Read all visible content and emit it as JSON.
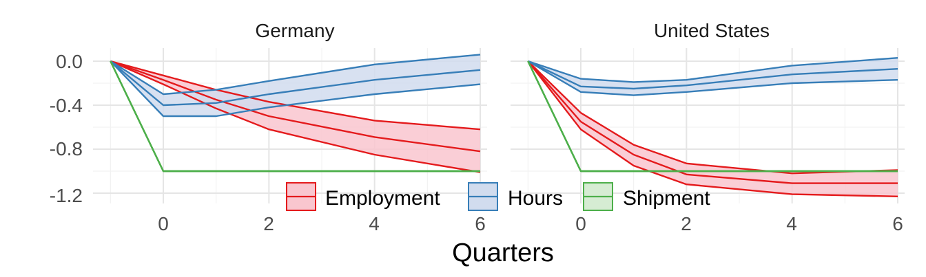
{
  "chart_data": {
    "type": "line",
    "facets": [
      {
        "title": "Germany",
        "series": [
          {
            "name": "Employment",
            "x": [
              -1,
              0,
              1,
              2,
              4,
              6
            ],
            "mean": [
              0,
              -0.17,
              -0.35,
              -0.5,
              -0.69,
              -0.82
            ],
            "lower": [
              0,
              -0.21,
              -0.43,
              -0.62,
              -0.85,
              -1.01
            ],
            "upper": [
              0,
              -0.13,
              -0.26,
              -0.37,
              -0.54,
              -0.62
            ]
          },
          {
            "name": "Hours",
            "x": [
              -1,
              0,
              1,
              2,
              4,
              6
            ],
            "mean": [
              0,
              -0.4,
              -0.38,
              -0.3,
              -0.17,
              -0.08
            ],
            "lower": [
              0,
              -0.5,
              -0.5,
              -0.42,
              -0.3,
              -0.21
            ],
            "upper": [
              0,
              -0.3,
              -0.26,
              -0.18,
              -0.03,
              0.06
            ]
          },
          {
            "name": "Shipment",
            "x": [
              -1,
              0,
              1,
              2,
              4,
              6
            ],
            "mean": [
              0,
              -1.0,
              -1.0,
              -1.0,
              -1.0,
              -1.0
            ],
            "lower": [
              0,
              -1.0,
              -1.0,
              -1.0,
              -1.0,
              -1.0
            ],
            "upper": [
              0,
              -1.0,
              -1.0,
              -1.0,
              -1.0,
              -1.0
            ]
          }
        ]
      },
      {
        "title": "United States",
        "series": [
          {
            "name": "Employment",
            "x": [
              -1,
              0,
              1,
              2,
              4,
              6
            ],
            "mean": [
              0,
              -0.55,
              -0.85,
              -1.03,
              -1.11,
              -1.11
            ],
            "lower": [
              0,
              -0.62,
              -0.95,
              -1.12,
              -1.21,
              -1.23
            ],
            "upper": [
              0,
              -0.47,
              -0.76,
              -0.93,
              -1.02,
              -0.99
            ]
          },
          {
            "name": "Hours",
            "x": [
              -1,
              0,
              1,
              2,
              4,
              6
            ],
            "mean": [
              0,
              -0.23,
              -0.25,
              -0.22,
              -0.12,
              -0.07
            ],
            "lower": [
              0,
              -0.28,
              -0.31,
              -0.28,
              -0.2,
              -0.17
            ],
            "upper": [
              0,
              -0.16,
              -0.19,
              -0.17,
              -0.04,
              0.03
            ]
          },
          {
            "name": "Shipment",
            "x": [
              -1,
              0,
              1,
              2,
              4,
              6
            ],
            "mean": [
              0,
              -1.0,
              -1.0,
              -1.0,
              -1.0,
              -1.0
            ],
            "lower": [
              0,
              -1.0,
              -1.0,
              -1.0,
              -1.0,
              -1.0
            ],
            "upper": [
              0,
              -1.0,
              -1.0,
              -1.0,
              -1.0,
              -1.0
            ]
          }
        ]
      }
    ],
    "xlabel": "Quarters",
    "ylabel": "",
    "xlim": [
      -1.3,
      6
    ],
    "ylim": [
      -1.25,
      0.07
    ],
    "x_ticks": [
      0,
      2,
      4,
      6
    ],
    "y_ticks": [
      0.0,
      -0.4,
      -0.8,
      -1.2
    ],
    "y_tick_labels": [
      "0.0",
      "-0.4",
      "-0.8",
      "-1.2"
    ],
    "legend": [
      "Employment",
      "Hours",
      "Shipment"
    ],
    "legend_position": "bottom-center",
    "grid": true,
    "colors": {
      "Employment": {
        "line": "#e41a1c",
        "fill": "#f9c6cf"
      },
      "Hours": {
        "line": "#377eb8",
        "fill": "#d1dcee"
      },
      "Shipment": {
        "line": "#4daf4a",
        "fill": "#d6ecd3"
      }
    }
  }
}
